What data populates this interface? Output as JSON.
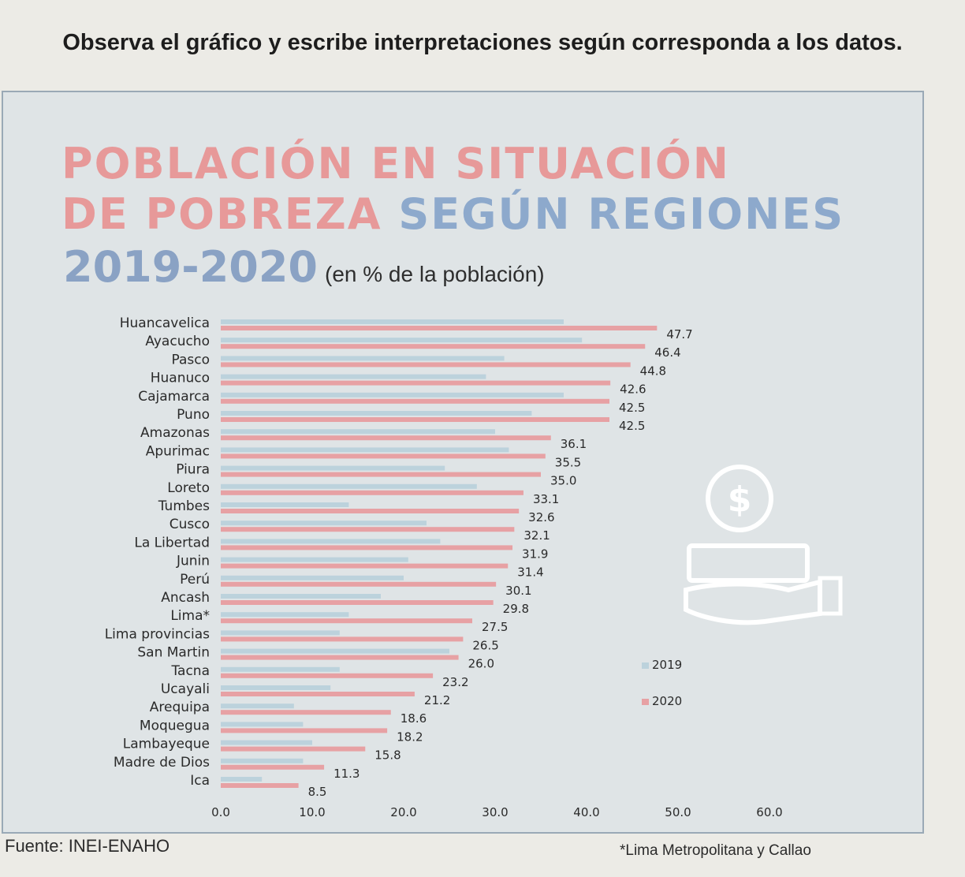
{
  "instruction": "Observa el gráfico y escribe interpretaciones según corresponda a los datos.",
  "title": {
    "line1": "POBLACIÓN EN SITUACIÓN",
    "line2_red": "DE POBREZA",
    "line2_blue": "SEGÚN REGIONES",
    "years": "2019-2020",
    "unit": "(en % de la población)"
  },
  "source": "Fuente: INEI-ENAHO",
  "note": "*Lima Metropolitana y Callao",
  "colors": {
    "y2019": "#bcd2dc",
    "y2020": "#e7a1a4"
  },
  "chart_data": {
    "type": "bar",
    "orientation": "horizontal",
    "title": "POBLACIÓN EN SITUACIÓN DE POBREZA SEGÚN REGIONES 2019-2020",
    "subtitle": "(en % de la población)",
    "categories": [
      "Huancavelica",
      "Ayacucho",
      "Pasco",
      "Huanuco",
      "Cajamarca",
      "Puno",
      "Amazonas",
      "Apurimac",
      "Piura",
      "Loreto",
      "Tumbes",
      "Cusco",
      "La Libertad",
      "Junin",
      "Perú",
      "Ancash",
      "Lima*",
      "Lima provincias",
      "San Martin",
      "Tacna",
      "Ucayali",
      "Arequipa",
      "Moquegua",
      "Lambayeque",
      "Madre de Dios",
      "Ica"
    ],
    "series": [
      {
        "name": "2019",
        "values": [
          37.5,
          39.5,
          31.0,
          29.0,
          37.5,
          34.0,
          30.0,
          31.5,
          24.5,
          28.0,
          14.0,
          22.5,
          24.0,
          20.5,
          20.0,
          17.5,
          14.0,
          13.0,
          25.0,
          13.0,
          12.0,
          8.0,
          9.0,
          10.0,
          9.0,
          4.5
        ],
        "labeled": false
      },
      {
        "name": "2020",
        "values": [
          47.7,
          46.4,
          44.8,
          42.6,
          42.5,
          42.5,
          36.1,
          35.5,
          35.0,
          33.1,
          32.6,
          32.1,
          31.9,
          31.4,
          30.1,
          29.8,
          27.5,
          26.5,
          26.0,
          23.2,
          21.2,
          18.6,
          18.2,
          15.8,
          11.3,
          8.5
        ]
      }
    ],
    "value_labels": [
      "47.7",
      "46.4",
      "44.8",
      "42.6",
      "42.5",
      "42.5",
      "36.1",
      "35.5",
      "35.0",
      "33.1",
      "32.6",
      "32.1",
      "31.9",
      "31.4",
      "30.1",
      "29.8",
      "27.5",
      "26.5",
      "26.0",
      "23.2",
      "21.2",
      "18.6",
      "18.2",
      "15.8",
      "11.3",
      "8.5"
    ],
    "xticks": [
      "0.0",
      "10.0",
      "20.0",
      "30.0",
      "40.0",
      "50.0",
      "60.0"
    ],
    "xlim": [
      0,
      60
    ],
    "legend": [
      "2019",
      "2020"
    ],
    "legend_position": "right",
    "grid": false
  }
}
